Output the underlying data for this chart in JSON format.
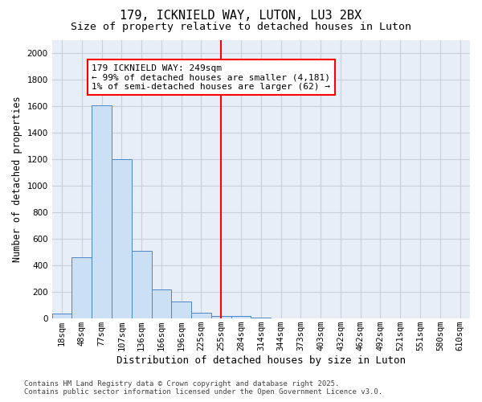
{
  "title": "179, ICKNIELD WAY, LUTON, LU3 2BX",
  "subtitle": "Size of property relative to detached houses in Luton",
  "xlabel": "Distribution of detached houses by size in Luton",
  "ylabel": "Number of detached properties",
  "bin_labels": [
    "18sqm",
    "48sqm",
    "77sqm",
    "107sqm",
    "136sqm",
    "166sqm",
    "196sqm",
    "225sqm",
    "255sqm",
    "284sqm",
    "314sqm",
    "344sqm",
    "373sqm",
    "403sqm",
    "432sqm",
    "462sqm",
    "492sqm",
    "521sqm",
    "551sqm",
    "580sqm",
    "610sqm"
  ],
  "bar_heights": [
    35,
    460,
    1610,
    1200,
    510,
    220,
    130,
    45,
    20,
    20,
    10,
    0,
    0,
    0,
    0,
    0,
    0,
    0,
    0,
    0,
    0
  ],
  "bar_color": "#cce0f5",
  "bar_edge_color": "#4a86c8",
  "vline_x": 8.0,
  "vline_color": "red",
  "annotation_text": "179 ICKNIELD WAY: 249sqm\n← 99% of detached houses are smaller (4,181)\n1% of semi-detached houses are larger (62) →",
  "annotation_box_color": "white",
  "annotation_box_edge_color": "red",
  "ylim": [
    0,
    2100
  ],
  "yticks": [
    0,
    200,
    400,
    600,
    800,
    1000,
    1200,
    1400,
    1600,
    1800,
    2000
  ],
  "grid_color": "#c8d0dc",
  "background_color": "#e8eef8",
  "footer_line1": "Contains HM Land Registry data © Crown copyright and database right 2025.",
  "footer_line2": "Contains public sector information licensed under the Open Government Licence v3.0.",
  "title_fontsize": 11,
  "subtitle_fontsize": 9.5,
  "xlabel_fontsize": 9,
  "ylabel_fontsize": 8.5,
  "tick_fontsize": 7.5,
  "annotation_fontsize": 8,
  "footer_fontsize": 6.5
}
